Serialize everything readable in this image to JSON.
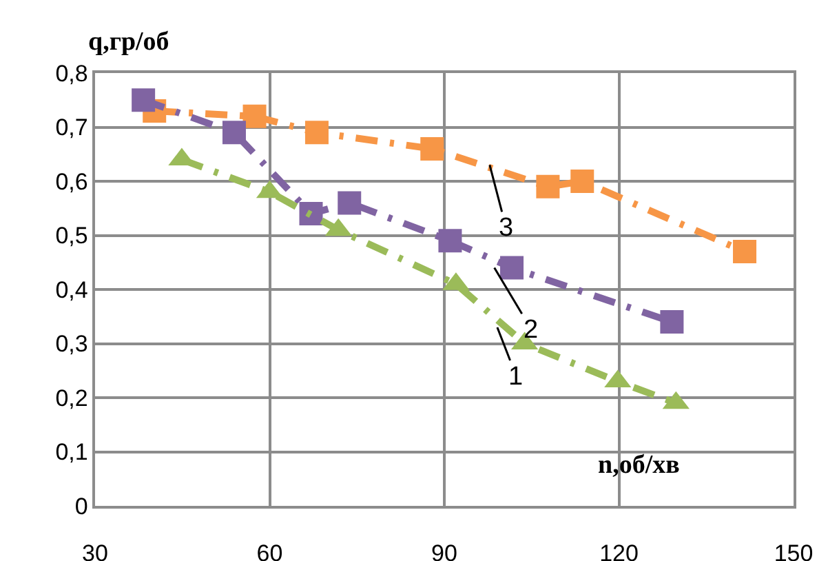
{
  "chart_data": {
    "type": "line",
    "xlabel": "n,об/хв",
    "ylabel": "q,гр/об",
    "xlim": [
      30,
      150
    ],
    "xticks": [
      30,
      60,
      90,
      120,
      150
    ],
    "ylim": [
      0,
      0.8
    ],
    "yticks": [
      0,
      {
        "value": 0.1,
        "label": "0,1"
      },
      {
        "value": 0.2,
        "label": "0,2"
      },
      {
        "value": 0.3,
        "label": "0,3"
      },
      {
        "value": 0.4,
        "label": "0,4"
      },
      {
        "value": 0.5,
        "label": "0,5"
      },
      {
        "value": 0.6,
        "label": "0,6"
      },
      {
        "value": 0.7,
        "label": "0,7"
      },
      {
        "value": 0.8,
        "label": "0,8"
      }
    ],
    "grid": true,
    "line_style": "dashed",
    "series": [
      {
        "color": "#f79646",
        "marker": "square",
        "x": [
          40.2,
          57.4,
          68.1,
          87.9,
          107.8,
          113.7,
          141.6
        ],
        "values": [
          0.73,
          0.72,
          0.69,
          0.66,
          0.59,
          0.6,
          0.47
        ]
      },
      {
        "color": "#8064a2",
        "marker": "square",
        "x": [
          38.3,
          53.9,
          67.1,
          73.7,
          91,
          101.6,
          129.1
        ],
        "values": [
          0.75,
          0.69,
          0.54,
          0.56,
          0.49,
          0.44,
          0.34
        ]
      },
      {
        "color": "#9bbb59",
        "marker": "triangle",
        "x": [
          44.9,
          60,
          71.8,
          92,
          103.8,
          119.8,
          129.8
        ],
        "values": [
          0.64,
          0.58,
          0.51,
          0.41,
          0.3,
          0.23,
          0.19
        ]
      }
    ],
    "annotations": [
      {
        "text": "3",
        "x": 97.8,
        "y": 0.63
      },
      {
        "text": "2",
        "x": 98.6,
        "y": 0.44
      },
      {
        "text": "1",
        "x": 99.1,
        "y": 0.33
      }
    ]
  }
}
